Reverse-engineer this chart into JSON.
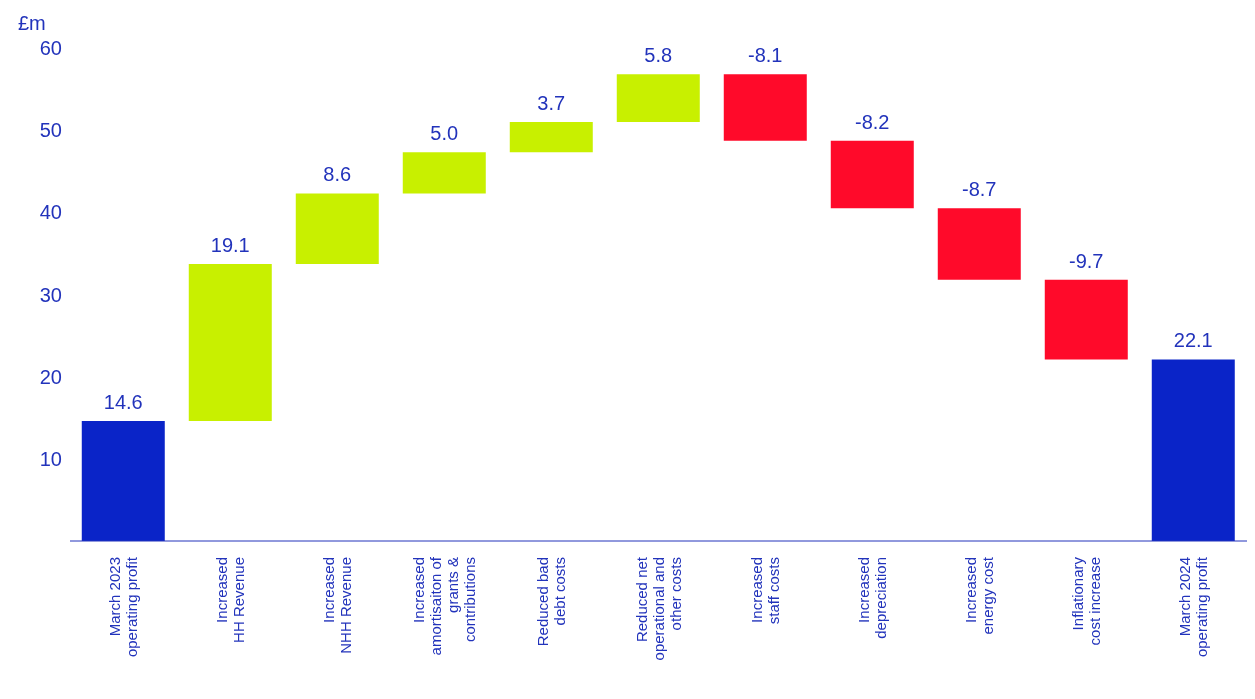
{
  "chart_data": {
    "type": "bar",
    "ylabel": "£m",
    "categories": [
      "March 2023\noperating profit",
      "Increased\nHH Revenue",
      "Increased\nNHH Revenue",
      "Increased\namortisaiton of\ngrants &\ncontributions",
      "Reduced bad\ndebt costs",
      "Reduced net\noperational and\nother costs",
      "Increased\nstaff costs",
      "Increased\ndepreciation",
      "Increased\nenergy cost",
      "Inflationary\ncost increase",
      "March 2024\noperating profit"
    ],
    "values": [
      14.6,
      19.1,
      8.6,
      5.0,
      3.7,
      5.8,
      -8.1,
      -8.2,
      -8.7,
      -9.7,
      22.1
    ],
    "base": [
      0,
      14.6,
      33.7,
      42.3,
      47.3,
      51.0,
      56.8,
      48.7,
      40.5,
      31.8,
      0
    ],
    "colors": [
      "#0a24c8",
      "#c8f000",
      "#c8f000",
      "#c8f000",
      "#c8f000",
      "#c8f000",
      "#ff0a2a",
      "#ff0a2a",
      "#ff0a2a",
      "#ff0a2a",
      "#0a24c8"
    ],
    "value_labels": [
      "14.6",
      "19.1",
      "8.6",
      "5.0",
      "3.7",
      "5.8",
      "-8.1",
      "-8.2",
      "-8.7",
      "-9.7",
      "22.1"
    ],
    "ylim": [
      0,
      60
    ],
    "yticks": [
      10,
      20,
      30,
      40,
      50,
      60
    ],
    "grid": false,
    "legend": false
  }
}
